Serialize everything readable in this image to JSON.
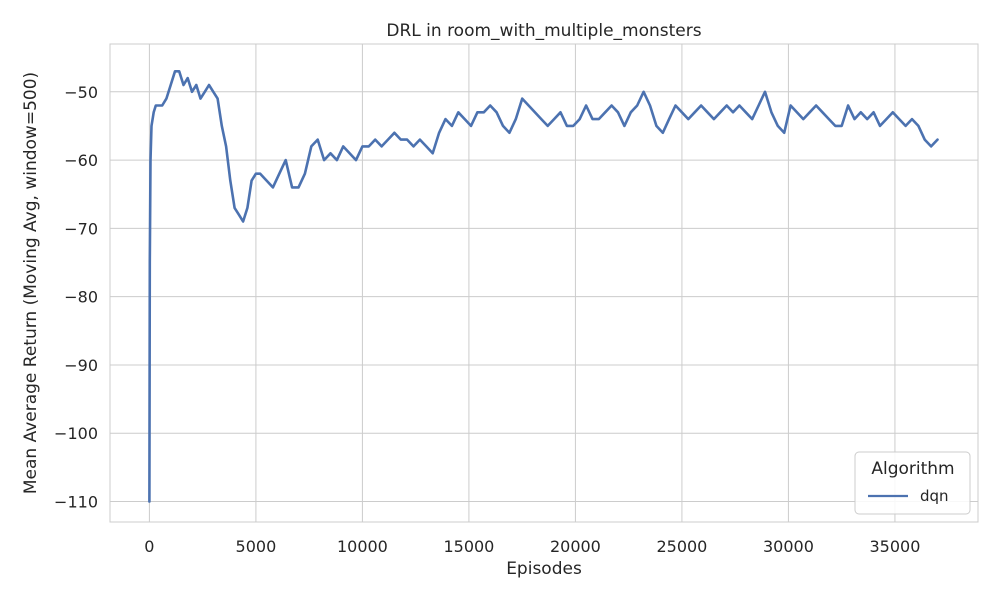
{
  "chart_data": {
    "type": "line",
    "title": "DRL in room_with_multiple_monsters",
    "xlabel": "Episodes",
    "ylabel": "Mean Average Return (Moving Avg, window=500)",
    "xlim": [
      -1850,
      38900
    ],
    "ylim": [
      -113,
      -43
    ],
    "xticks": [
      0,
      5000,
      10000,
      15000,
      20000,
      25000,
      30000,
      35000
    ],
    "xtick_labels": [
      "0",
      "5000",
      "10000",
      "15000",
      "20000",
      "25000",
      "30000",
      "35000"
    ],
    "yticks": [
      -50,
      -60,
      -70,
      -80,
      -90,
      -100,
      -110
    ],
    "ytick_labels": [
      "−50",
      "−60",
      "−70",
      "−80",
      "−90",
      "−100",
      "−110"
    ],
    "grid": true,
    "legend": {
      "title": "Algorithm",
      "position": "lower-right"
    },
    "series": [
      {
        "name": "dqn",
        "color": "#4c72b0",
        "x": [
          0,
          20,
          50,
          100,
          200,
          300,
          400,
          600,
          800,
          1000,
          1200,
          1400,
          1600,
          1800,
          2000,
          2200,
          2400,
          2600,
          2800,
          3000,
          3200,
          3400,
          3600,
          3800,
          4000,
          4200,
          4400,
          4600,
          4800,
          5000,
          5200,
          5500,
          5800,
          6100,
          6400,
          6700,
          7000,
          7300,
          7600,
          7900,
          8200,
          8500,
          8800,
          9100,
          9400,
          9700,
          10000,
          10300,
          10600,
          10900,
          11200,
          11500,
          11800,
          12100,
          12400,
          12700,
          13000,
          13300,
          13600,
          13900,
          14200,
          14500,
          14800,
          15100,
          15400,
          15700,
          16000,
          16300,
          16600,
          16900,
          17200,
          17500,
          17800,
          18100,
          18400,
          18700,
          19000,
          19300,
          19600,
          19900,
          20200,
          20500,
          20800,
          21100,
          21400,
          21700,
          22000,
          22300,
          22600,
          22900,
          23200,
          23500,
          23800,
          24100,
          24400,
          24700,
          25000,
          25300,
          25600,
          25900,
          26200,
          26500,
          26800,
          27100,
          27400,
          27700,
          28000,
          28300,
          28600,
          28900,
          29200,
          29500,
          29800,
          30100,
          30400,
          30700,
          31000,
          31300,
          31600,
          31900,
          32200,
          32500,
          32800,
          33100,
          33400,
          33700,
          34000,
          34300,
          34600,
          34900,
          35200,
          35500,
          35800,
          36100,
          36400,
          36700,
          37000
        ],
        "y": [
          -110,
          -75,
          -60,
          -55,
          -53,
          -52,
          -52,
          -52,
          -51,
          -49,
          -47,
          -47,
          -49,
          -48,
          -50,
          -49,
          -51,
          -50,
          -49,
          -50,
          -51,
          -55,
          -58,
          -63,
          -67,
          -68,
          -69,
          -67,
          -63,
          -62,
          -62,
          -63,
          -64,
          -62,
          -60,
          -64,
          -64,
          -62,
          -58,
          -57,
          -60,
          -59,
          -60,
          -58,
          -59,
          -60,
          -58,
          -58,
          -57,
          -58,
          -57,
          -56,
          -57,
          -57,
          -58,
          -57,
          -58,
          -59,
          -56,
          -54,
          -55,
          -53,
          -54,
          -55,
          -53,
          -53,
          -52,
          -53,
          -55,
          -56,
          -54,
          -51,
          -52,
          -53,
          -54,
          -55,
          -54,
          -53,
          -55,
          -55,
          -54,
          -52,
          -54,
          -54,
          -53,
          -52,
          -53,
          -55,
          -53,
          -52,
          -50,
          -52,
          -55,
          -56,
          -54,
          -52,
          -53,
          -54,
          -53,
          -52,
          -53,
          -54,
          -53,
          -52,
          -53,
          -52,
          -53,
          -54,
          -52,
          -50,
          -53,
          -55,
          -56,
          -52,
          -53,
          -54,
          -53,
          -52,
          -53,
          -54,
          -55,
          -55,
          -52,
          -54,
          -53,
          -54,
          -53,
          -55,
          -54,
          -53,
          -54,
          -55,
          -54,
          -55,
          -57,
          -58,
          -57
        ]
      }
    ]
  }
}
